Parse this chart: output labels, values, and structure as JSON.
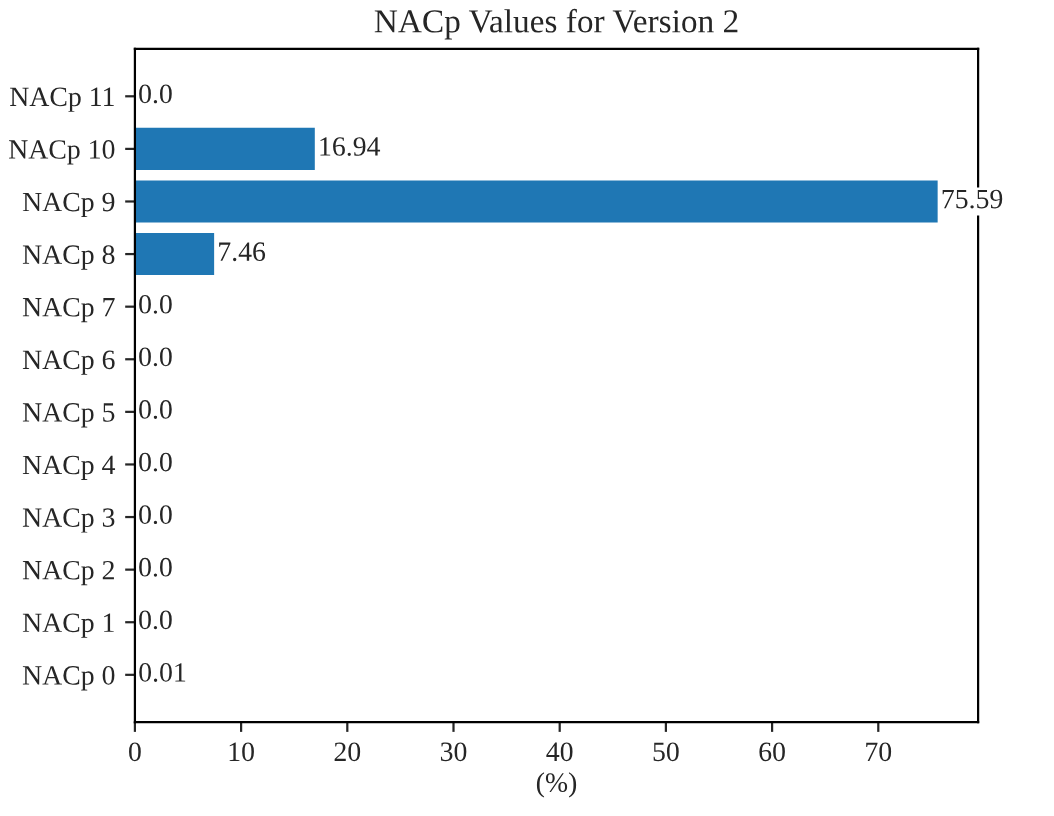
{
  "chart_data": {
    "type": "bar",
    "orientation": "horizontal",
    "title": "NACp Values for Version 2",
    "xlabel": "(%)",
    "categories": [
      "NACp 11",
      "NACp 10",
      "NACp 9",
      "NACp 8",
      "NACp 7",
      "NACp 6",
      "NACp 5",
      "NACp 4",
      "NACp 3",
      "NACp 2",
      "NACp 1",
      "NACp 0"
    ],
    "values": [
      0.0,
      16.94,
      75.59,
      7.46,
      0.0,
      0.0,
      0.0,
      0.0,
      0.0,
      0.0,
      0.0,
      0.01
    ],
    "value_labels": [
      "0.0",
      "16.94",
      "75.59",
      "7.46",
      "0.0",
      "0.0",
      "0.0",
      "0.0",
      "0.0",
      "0.0",
      "0.0",
      "0.01"
    ],
    "color": "#1f77b4",
    "xlim": [
      0,
      79.4
    ],
    "xticks": [
      0,
      10,
      20,
      30,
      40,
      50,
      60,
      70
    ]
  }
}
